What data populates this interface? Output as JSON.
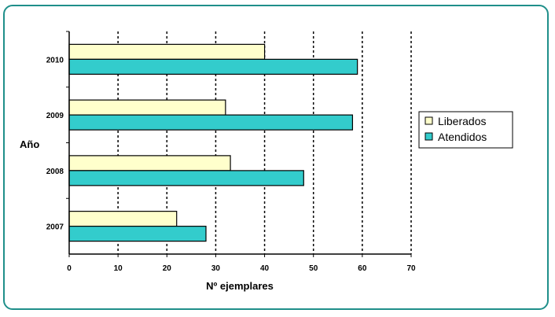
{
  "chart_data": {
    "type": "bar",
    "orientation": "horizontal",
    "categories": [
      "2007",
      "2008",
      "2009",
      "2010"
    ],
    "series": [
      {
        "name": "Liberados",
        "values": [
          22,
          33,
          32,
          40
        ],
        "color": "#ffffcc"
      },
      {
        "name": "Atendidos",
        "values": [
          28,
          48,
          58,
          59
        ],
        "color": "#33cccc"
      }
    ],
    "xlabel": "Nº ejemplares",
    "ylabel": "Año",
    "xlim": [
      0,
      70
    ],
    "xticks": [
      "0",
      "10",
      "20",
      "30",
      "40",
      "50",
      "60",
      "70"
    ],
    "grid": "vertical dotted",
    "legend": "right"
  }
}
